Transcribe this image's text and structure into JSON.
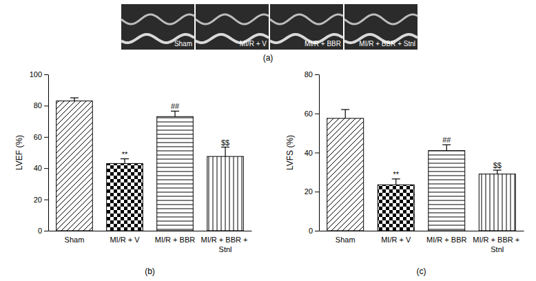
{
  "images": {
    "caption": "(a)",
    "labels": [
      "Sham",
      "MI/R + V",
      "MI/R + BBR",
      "MI/R + BBR + Stnl"
    ]
  },
  "chart_data": [
    {
      "type": "bar",
      "caption": "(b)",
      "y_label": "LVEF (%)",
      "categories": [
        "Sham",
        "MI/R + V",
        "MI/R + BBR",
        "MI/R + BBR + Stnl"
      ],
      "values": [
        83,
        43,
        73,
        47.5
      ],
      "errors": [
        2,
        3,
        3.5,
        6
      ],
      "annotations": [
        null,
        "**",
        "##",
        "$$"
      ],
      "color": "#000000",
      "ylim": [
        0,
        100
      ],
      "yticks": [
        0,
        20,
        40,
        60,
        80,
        100
      ],
      "grid": false
    },
    {
      "type": "bar",
      "caption": "(c)",
      "y_label": "LVFS (%)",
      "categories": [
        "Sham",
        "MI/R + V",
        "MI/R + BBR",
        "MI/R + BBR + Stnl"
      ],
      "values": [
        57.5,
        23.5,
        41,
        29
      ],
      "errors": [
        4.5,
        3,
        3,
        2
      ],
      "annotations": [
        null,
        "**",
        "##",
        "$$"
      ],
      "color": "#000000",
      "ylim": [
        0,
        80
      ],
      "yticks": [
        0,
        20,
        40,
        60,
        80
      ],
      "grid": false
    }
  ]
}
